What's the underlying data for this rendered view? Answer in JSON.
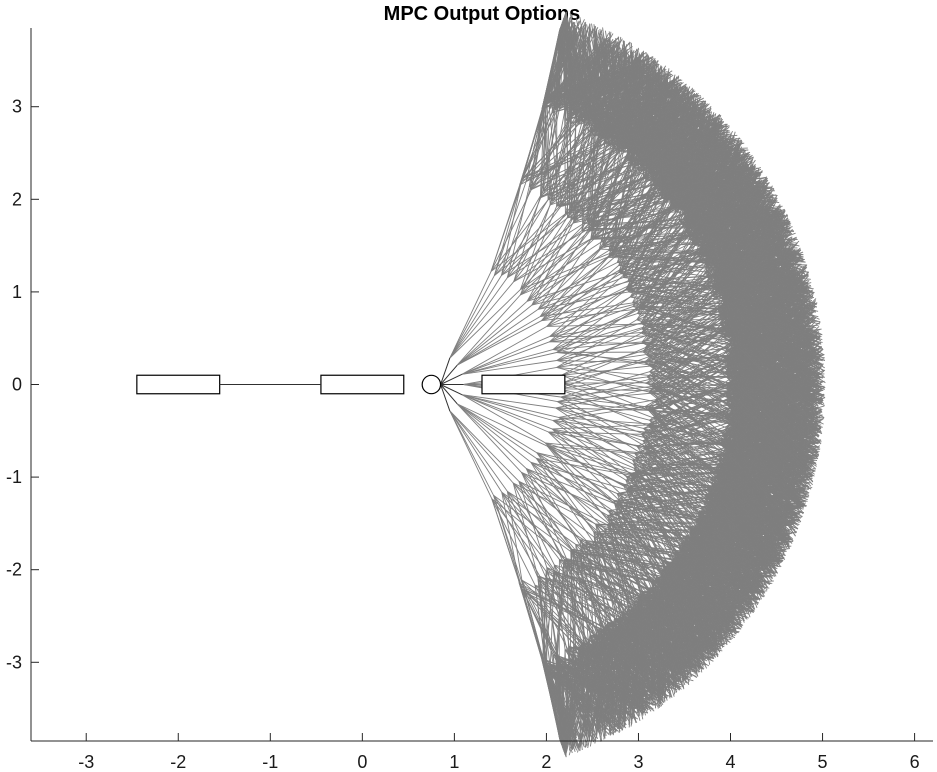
{
  "chart_data": {
    "type": "line",
    "title": "MPC Output Options",
    "xlabel": "",
    "ylabel": "",
    "xlim": [
      -3.6,
      6.2
    ],
    "ylim": [
      -3.85,
      3.85
    ],
    "x_ticks": [
      -3,
      -2,
      -1,
      0,
      1,
      2,
      3,
      4,
      5,
      6
    ],
    "y_ticks": [
      3,
      2,
      1,
      0,
      -1,
      -2,
      -3
    ],
    "grid": false,
    "legend": "none",
    "line_color": "#808080",
    "shape_color": "#000000",
    "tree": {
      "origin": [
        0.75,
        0
      ],
      "outer_radius": 4.2,
      "layers": [
        {
          "radius": 0.35,
          "angle_span_deg": 55,
          "branches": 7
        },
        {
          "radius": 1.4,
          "angle_span_deg": 62,
          "branches_per_node": 6
        },
        {
          "radius": 2.4,
          "angle_span_deg": 66,
          "branches_per_node": 5
        },
        {
          "radius": 3.3,
          "angle_span_deg": 68,
          "branches_per_node": 5
        },
        {
          "radius": 4.2,
          "angle_span_deg": 70,
          "branches_per_node": 5
        }
      ]
    },
    "shapes": [
      {
        "kind": "rectangle",
        "x": [
          -2.45,
          -1.55
        ],
        "y": [
          -0.1,
          0.1
        ]
      },
      {
        "kind": "rectangle",
        "x": [
          -0.45,
          0.45
        ],
        "y": [
          -0.1,
          0.1
        ]
      },
      {
        "kind": "rectangle",
        "x": [
          1.3,
          2.2
        ],
        "y": [
          -0.1,
          0.1
        ]
      },
      {
        "kind": "circle",
        "center": [
          0.75,
          0
        ],
        "radius": 0.1
      },
      {
        "kind": "segment",
        "x": [
          -1.55,
          -0.45
        ],
        "y": [
          0,
          0
        ]
      }
    ]
  }
}
